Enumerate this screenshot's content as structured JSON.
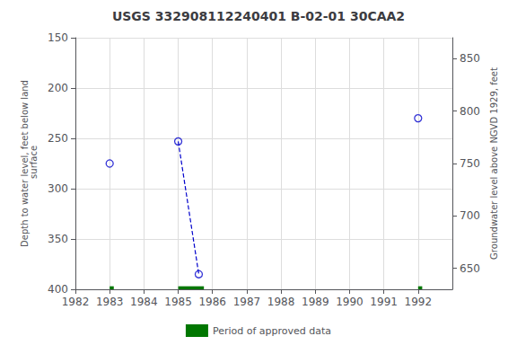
{
  "chart_data": {
    "type": "scatter",
    "title": "USGS 332908112240401 B-02-01 30CAA2",
    "ylabel": "Depth to water level, feet below land\n surface",
    "y2label": "Groundwater level above NGVD 1929, feet",
    "xlim": [
      1982,
      1993
    ],
    "xticks": [
      1982,
      1983,
      1984,
      1985,
      1986,
      1987,
      1988,
      1989,
      1990,
      1991,
      1992
    ],
    "ylim": [
      400,
      150
    ],
    "yticks": [
      150,
      200,
      250,
      300,
      350,
      400
    ],
    "y2lim": [
      630,
      870
    ],
    "y2ticks": [
      650,
      700,
      750,
      800,
      850
    ],
    "grid": true,
    "legend": "bottom",
    "series": [
      {
        "type": "line",
        "line_style": "dashed",
        "color": "#0000cc",
        "x": [
          1985.0,
          1985.6
        ],
        "values": [
          253,
          385
        ]
      },
      {
        "type": "scatter",
        "marker": "open circle",
        "color": "#0000cc",
        "x": [
          1983.0,
          1985.0,
          1985.6,
          1992.0
        ],
        "values": [
          275,
          253,
          385,
          230
        ]
      },
      {
        "name": "Period of approved data",
        "type": "bar",
        "color": "#007700",
        "x_start": [
          1983.0,
          1985.0,
          1992.0
        ],
        "x_end": [
          1983.12,
          1985.75,
          1992.12
        ],
        "y_bot": [
          397,
          397,
          397
        ],
        "y_top": [
          400,
          400,
          400
        ]
      }
    ]
  }
}
